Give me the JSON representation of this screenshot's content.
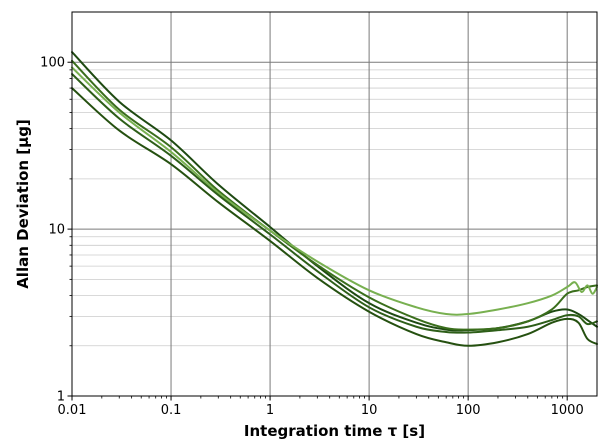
{
  "chart_data": {
    "type": "line",
    "xlabel": "Integration time τ [s]",
    "ylabel": "Allan Deviation [µg]",
    "x_scale": "log",
    "y_scale": "log",
    "xlim": [
      0.01,
      2000
    ],
    "ylim": [
      1,
      200
    ],
    "x_ticks": [
      {
        "value": 0.01,
        "label": "0.01"
      },
      {
        "value": 0.1,
        "label": "0.1"
      },
      {
        "value": 1,
        "label": "1"
      },
      {
        "value": 10,
        "label": "10"
      },
      {
        "value": 100,
        "label": "100"
      },
      {
        "value": 1000,
        "label": "1000"
      }
    ],
    "y_ticks": [
      {
        "value": 1,
        "label": "1"
      },
      {
        "value": 10,
        "label": "10"
      },
      {
        "value": 100,
        "label": "100"
      }
    ],
    "grid": true,
    "legend": "none",
    "series": [
      {
        "color": "#1e4a12",
        "x": [
          0.01,
          0.03,
          0.1,
          0.3,
          1,
          3,
          10,
          30,
          60,
          100,
          200,
          400,
          700,
          1000,
          1300,
          1600,
          2000
        ],
        "y": [
          115,
          58,
          34,
          18.5,
          10.3,
          6.0,
          3.6,
          2.75,
          2.5,
          2.48,
          2.55,
          2.8,
          3.2,
          3.3,
          3.1,
          2.85,
          2.6
        ]
      },
      {
        "color": "#3a6e1c",
        "x": [
          0.01,
          0.03,
          0.1,
          0.3,
          1,
          3,
          10,
          30,
          60,
          100,
          200,
          400,
          700,
          1000,
          1300,
          1600,
          2000
        ],
        "y": [
          102,
          52,
          31,
          17,
          9.8,
          6.1,
          3.9,
          2.9,
          2.55,
          2.5,
          2.55,
          2.8,
          3.3,
          4.1,
          4.3,
          4.5,
          4.6
        ]
      },
      {
        "color": "#78b050",
        "x": [
          0.01,
          0.03,
          0.1,
          0.3,
          1,
          3,
          10,
          30,
          60,
          100,
          200,
          400,
          700,
          1000,
          1200,
          1400,
          1600,
          1800,
          2000
        ],
        "y": [
          93,
          50,
          29,
          16.5,
          9.8,
          6.4,
          4.3,
          3.4,
          3.1,
          3.1,
          3.3,
          3.6,
          4.0,
          4.5,
          4.8,
          4.2,
          4.6,
          4.1,
          4.5
        ]
      },
      {
        "color": "#2d5e18",
        "x": [
          0.01,
          0.03,
          0.1,
          0.3,
          1,
          3,
          10,
          30,
          60,
          100,
          200,
          400,
          700,
          1000,
          1300,
          1600,
          2000
        ],
        "y": [
          85,
          46,
          27.5,
          16,
          9.3,
          5.6,
          3.4,
          2.6,
          2.42,
          2.4,
          2.48,
          2.6,
          2.85,
          3.05,
          3.0,
          2.7,
          2.8
        ]
      },
      {
        "color": "#255010",
        "x": [
          0.01,
          0.03,
          0.1,
          0.3,
          1,
          3,
          10,
          30,
          60,
          100,
          200,
          400,
          700,
          1000,
          1300,
          1600,
          2000
        ],
        "y": [
          70,
          39,
          24.5,
          14.5,
          8.5,
          5.1,
          3.2,
          2.35,
          2.1,
          2.0,
          2.1,
          2.35,
          2.75,
          2.9,
          2.75,
          2.2,
          2.05
        ]
      }
    ]
  }
}
